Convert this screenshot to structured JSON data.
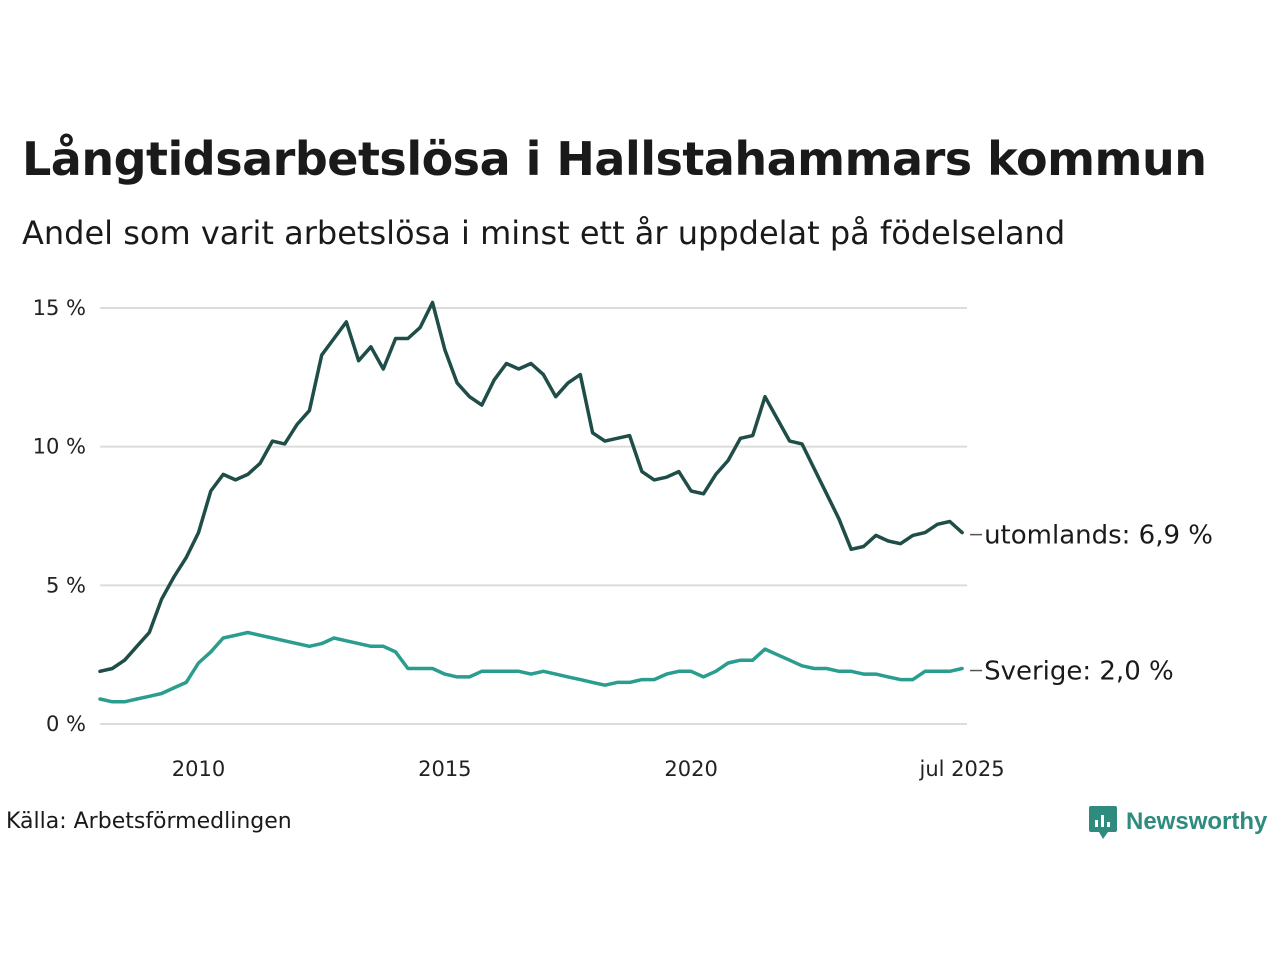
{
  "title": "Långtidsarbetslösa i Hallstahammars kommun",
  "subtitle": "Andel som varit arbetslösa i minst ett år uppdelat på födelseland",
  "source": "Källa: Arbetsförmedlingen",
  "logo": {
    "text": "Newsworthy",
    "icon": "newsworthy-logo-icon",
    "color": "#2e8b7d"
  },
  "chart_data": {
    "type": "line",
    "x_unit": "year",
    "y_unit": "%",
    "ylim": [
      0,
      15
    ],
    "y_ticks": [
      0,
      5,
      10,
      15
    ],
    "y_tick_labels": [
      "0 %",
      "5 %",
      "10 %",
      "15 %"
    ],
    "x_ticks": [
      2010,
      2015,
      2020,
      2025.5
    ],
    "x_tick_labels": [
      "2010",
      "2015",
      "2020",
      "jul 2025"
    ],
    "grid": "horizontal",
    "series": [
      {
        "name": "utomlands",
        "end_label": "utomlands: 6,9 %",
        "color": "#1f4d47",
        "x": [
          2008.0,
          2008.25,
          2008.5,
          2008.75,
          2009.0,
          2009.25,
          2009.5,
          2009.75,
          2010.0,
          2010.25,
          2010.5,
          2010.75,
          2011.0,
          2011.25,
          2011.5,
          2011.75,
          2012.0,
          2012.25,
          2012.5,
          2012.75,
          2013.0,
          2013.25,
          2013.5,
          2013.75,
          2014.0,
          2014.25,
          2014.5,
          2014.75,
          2015.0,
          2015.25,
          2015.5,
          2015.75,
          2016.0,
          2016.25,
          2016.5,
          2016.75,
          2017.0,
          2017.25,
          2017.5,
          2017.75,
          2018.0,
          2018.25,
          2018.5,
          2018.75,
          2019.0,
          2019.25,
          2019.5,
          2019.75,
          2020.0,
          2020.25,
          2020.5,
          2020.75,
          2021.0,
          2021.25,
          2021.5,
          2021.75,
          2022.0,
          2022.25,
          2022.5,
          2022.75,
          2023.0,
          2023.25,
          2023.5,
          2023.75,
          2024.0,
          2024.25,
          2024.5,
          2024.75,
          2025.0,
          2025.25,
          2025.5
        ],
        "values": [
          1.9,
          2.0,
          2.3,
          2.8,
          3.3,
          4.5,
          5.3,
          6.0,
          6.9,
          8.4,
          9.0,
          8.8,
          9.0,
          9.4,
          10.2,
          10.1,
          10.8,
          11.3,
          13.3,
          13.9,
          14.5,
          13.1,
          13.6,
          12.8,
          13.9,
          13.9,
          14.3,
          15.2,
          13.5,
          12.3,
          11.8,
          11.5,
          12.4,
          13.0,
          12.8,
          13.0,
          12.6,
          11.8,
          12.3,
          12.6,
          10.5,
          10.2,
          10.3,
          10.4,
          9.1,
          8.8,
          8.9,
          9.1,
          8.4,
          8.3,
          9.0,
          9.5,
          10.3,
          10.4,
          11.8,
          11.0,
          10.2,
          10.1,
          9.2,
          8.3,
          7.4,
          6.3,
          6.4,
          6.8,
          6.6,
          6.5,
          6.8,
          6.9,
          7.2,
          7.3,
          6.9
        ]
      },
      {
        "name": "Sverige",
        "end_label": "Sverige: 2,0 %",
        "color": "#2a9d8f",
        "x": [
          2008.0,
          2008.25,
          2008.5,
          2008.75,
          2009.0,
          2009.25,
          2009.5,
          2009.75,
          2010.0,
          2010.25,
          2010.5,
          2010.75,
          2011.0,
          2011.25,
          2011.5,
          2011.75,
          2012.0,
          2012.25,
          2012.5,
          2012.75,
          2013.0,
          2013.25,
          2013.5,
          2013.75,
          2014.0,
          2014.25,
          2014.5,
          2014.75,
          2015.0,
          2015.25,
          2015.5,
          2015.75,
          2016.0,
          2016.25,
          2016.5,
          2016.75,
          2017.0,
          2017.25,
          2017.5,
          2017.75,
          2018.0,
          2018.25,
          2018.5,
          2018.75,
          2019.0,
          2019.25,
          2019.5,
          2019.75,
          2020.0,
          2020.25,
          2020.5,
          2020.75,
          2021.0,
          2021.25,
          2021.5,
          2021.75,
          2022.0,
          2022.25,
          2022.5,
          2022.75,
          2023.0,
          2023.25,
          2023.5,
          2023.75,
          2024.0,
          2024.25,
          2024.5,
          2024.75,
          2025.0,
          2025.25,
          2025.5
        ],
        "values": [
          0.9,
          0.8,
          0.8,
          0.9,
          1.0,
          1.1,
          1.3,
          1.5,
          2.2,
          2.6,
          3.1,
          3.2,
          3.3,
          3.2,
          3.1,
          3.0,
          2.9,
          2.8,
          2.9,
          3.1,
          3.0,
          2.9,
          2.8,
          2.8,
          2.6,
          2.0,
          2.0,
          2.0,
          1.8,
          1.7,
          1.7,
          1.9,
          1.9,
          1.9,
          1.9,
          1.8,
          1.9,
          1.8,
          1.7,
          1.6,
          1.5,
          1.4,
          1.5,
          1.5,
          1.6,
          1.6,
          1.8,
          1.9,
          1.9,
          1.7,
          1.9,
          2.2,
          2.3,
          2.3,
          2.7,
          2.5,
          2.3,
          2.1,
          2.0,
          2.0,
          1.9,
          1.9,
          1.8,
          1.8,
          1.7,
          1.6,
          1.6,
          1.9,
          1.9,
          1.9,
          2.0
        ]
      }
    ]
  }
}
